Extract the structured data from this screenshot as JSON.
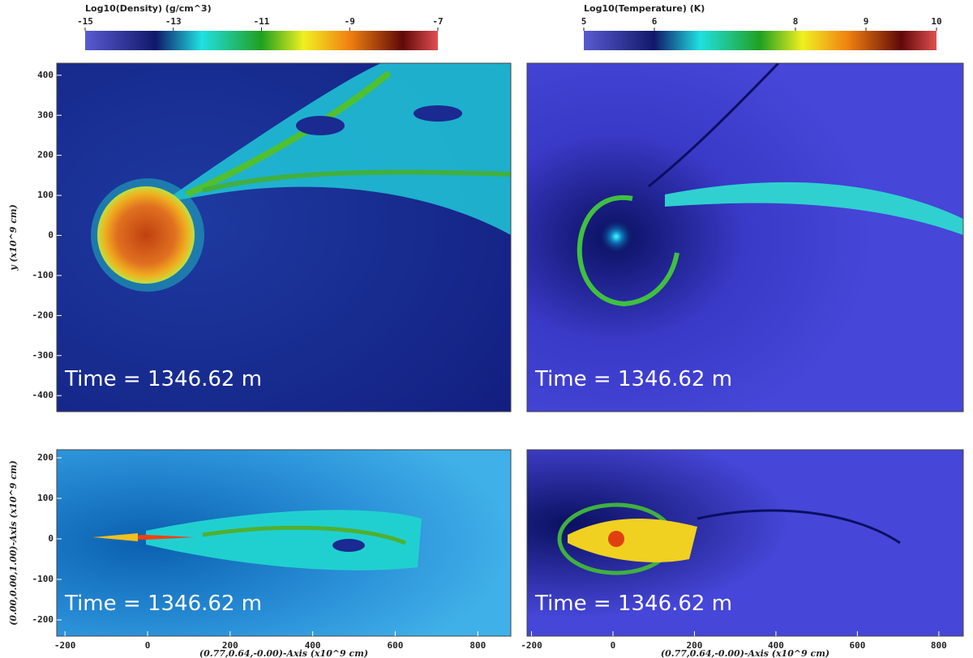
{
  "chart_data": [
    {
      "type": "image",
      "colorbar": {
        "label": "Log10(Density) (g/cm^3)",
        "lim": [
          -15,
          -7
        ],
        "ticks": [
          -15,
          -13,
          -11,
          -9,
          -7
        ]
      },
      "ylabel": "y (x10^9 cm)",
      "ylim": [
        -440,
        430
      ],
      "yticks": [
        -400,
        -300,
        -200,
        -100,
        0,
        100,
        200,
        300,
        400
      ],
      "annotation": "Time = 1346.62 m"
    },
    {
      "type": "image",
      "colorbar": {
        "label": "Log10(Temperature) (K)",
        "lim": [
          5,
          10
        ],
        "ticks": [
          5,
          6,
          8,
          9,
          10
        ]
      },
      "annotation": "Time = 1346.62 m"
    },
    {
      "type": "image",
      "xlabel": "(0.77,0.64,-0.00)-Axis (x10^9 cm)",
      "ylabel": "(0.00,0.00,1.00)-Axis (x10^9 cm)",
      "xlim": [
        -220,
        880
      ],
      "xticks": [
        -200,
        0,
        200,
        400,
        600,
        800
      ],
      "ylim": [
        -240,
        220
      ],
      "yticks": [
        -200,
        -100,
        0,
        100,
        200
      ],
      "annotation": "Time = 1346.62 m"
    },
    {
      "type": "image",
      "xlabel": "(0.77,0.64,-0.00)-Axis (x10^9 cm)",
      "xlim": [
        -211,
        860
      ],
      "xticks": [
        -200,
        0,
        200,
        400,
        600,
        800
      ],
      "annotation": "Time = 1346.62 m"
    }
  ]
}
